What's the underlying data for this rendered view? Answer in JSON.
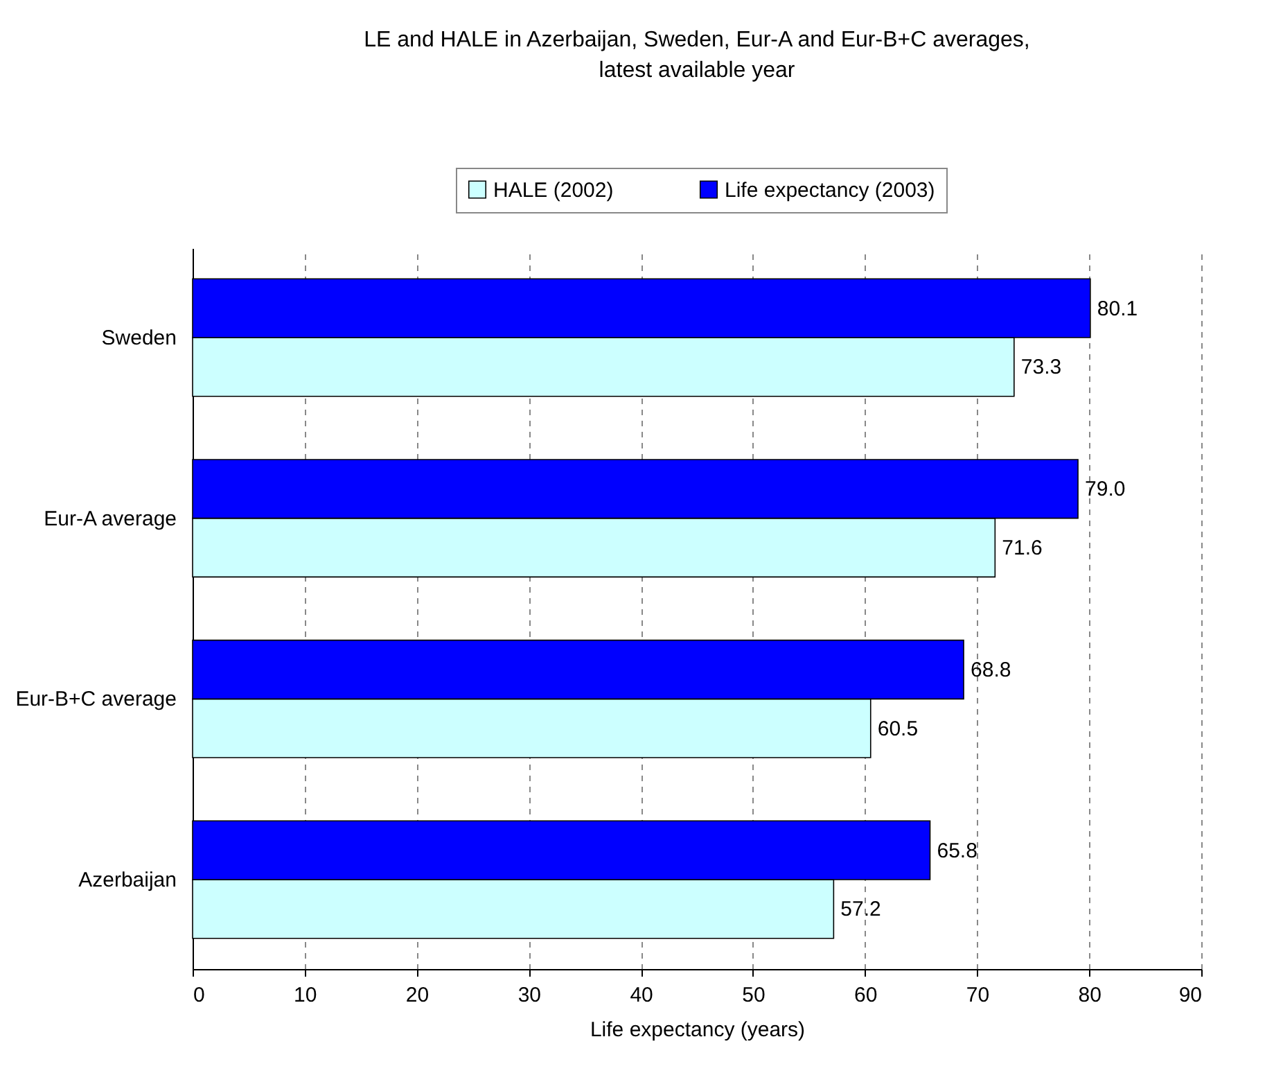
{
  "chart_data": {
    "type": "bar",
    "orientation": "horizontal",
    "title": "LE and HALE in Azerbaijan, Sweden, Eur-A and Eur-B+C averages, latest available year",
    "xlabel": "Life expectancy (years)",
    "categories": [
      "Sweden",
      "Eur-A average",
      "Eur-B+C average",
      "Azerbaijan"
    ],
    "series": [
      {
        "name": "HALE (2002)",
        "color": "#ccffff",
        "values": [
          73.3,
          71.6,
          60.5,
          57.2
        ],
        "value_labels": [
          "73.3",
          "71.6",
          "60.5",
          "57.2"
        ]
      },
      {
        "name": "Life expectancy (2003)",
        "color": "#0000ff",
        "values": [
          80.1,
          79.0,
          68.8,
          65.8
        ],
        "value_labels": [
          "80.1",
          "79.0",
          "68.8",
          "65.8"
        ]
      }
    ],
    "xlim": [
      0,
      90
    ],
    "xticks": [
      0,
      10,
      20,
      30,
      40,
      50,
      60,
      70,
      80,
      90
    ],
    "grid": "x",
    "legend": "top"
  }
}
